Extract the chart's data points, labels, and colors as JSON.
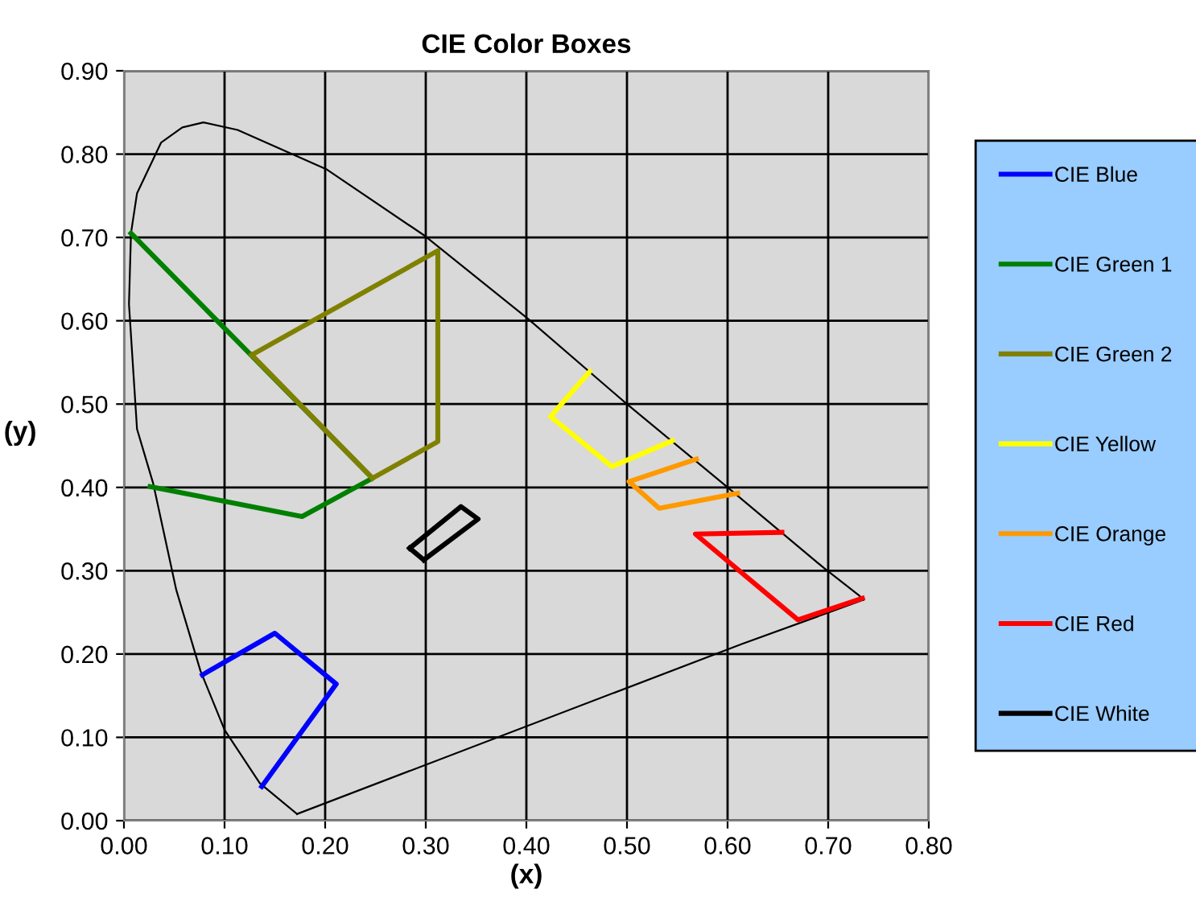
{
  "chart_data": {
    "type": "line",
    "title": "CIE Color Boxes",
    "xlabel": "(x)",
    "ylabel": "(y)",
    "xlim": [
      0,
      0.8
    ],
    "ylim": [
      0,
      0.9
    ],
    "xticks": [
      {
        "value": 0,
        "label": "0.00"
      },
      {
        "value": 0.1,
        "label": "0.10"
      },
      {
        "value": 0.2,
        "label": "0.20"
      },
      {
        "value": 0.3,
        "label": "0.30"
      },
      {
        "value": 0.4,
        "label": "0.40"
      },
      {
        "value": 0.5,
        "label": "0.50"
      },
      {
        "value": 0.6,
        "label": "0.60"
      },
      {
        "value": 0.7,
        "label": "0.70"
      },
      {
        "value": 0.8,
        "label": "0.80"
      }
    ],
    "yticks": [
      {
        "value": 0,
        "label": "0.00"
      },
      {
        "value": 0.1,
        "label": "0.10"
      },
      {
        "value": 0.2,
        "label": "0.20"
      },
      {
        "value": 0.3,
        "label": "0.30"
      },
      {
        "value": 0.4,
        "label": "0.40"
      },
      {
        "value": 0.5,
        "label": "0.50"
      },
      {
        "value": 0.6,
        "label": "0.60"
      },
      {
        "value": 0.7,
        "label": "0.70"
      },
      {
        "value": 0.8,
        "label": "0.80"
      },
      {
        "value": 0.9,
        "label": "0.90"
      }
    ],
    "grid": true,
    "legend": "right",
    "marker": "none",
    "line_style": "solid",
    "series": [
      {
        "color": "#000000",
        "x": [
          0.172,
          0.135,
          0.1,
          0.076,
          0.052,
          0.029,
          0.013,
          0.005,
          0.007,
          0.013,
          0.037,
          0.058,
          0.079,
          0.113,
          0.201,
          0.299,
          0.402,
          0.498,
          0.598,
          0.696,
          0.731,
          0.735
        ],
        "values": [
          0.008,
          0.045,
          0.109,
          0.18,
          0.277,
          0.405,
          0.47,
          0.62,
          0.705,
          0.753,
          0.814,
          0.832,
          0.838,
          0.829,
          0.782,
          0.702,
          0.602,
          0.502,
          0.402,
          0.303,
          0.27,
          0.265
        ]
      },
      {
        "color": "#000000",
        "x": [
          0.735,
          0.614,
          0.172
        ],
        "values": [
          0.265,
          0.212,
          0.008
        ]
      },
      {
        "name": "CIE Blue",
        "color": "#0000ff",
        "x": [
          0.078,
          0.15,
          0.211,
          0.137
        ],
        "values": [
          0.175,
          0.225,
          0.164,
          0.041
        ]
      },
      {
        "name": "CIE Green 1",
        "color": "#008000",
        "x": [
          0.007,
          0.247,
          0.177,
          0.026
        ],
        "values": [
          0.705,
          0.411,
          0.365,
          0.401
        ]
      },
      {
        "name": "CIE Green 2",
        "color": "#808000",
        "x": [
          0.247,
          0.312,
          0.312,
          0.127
        ],
        "values": [
          0.411,
          0.455,
          0.684,
          0.559
        ]
      },
      {
        "color": "#808000",
        "x": [
          0.127,
          0.247
        ],
        "values": [
          0.559,
          0.411
        ]
      },
      {
        "name": "CIE Yellow",
        "color": "#ffff00",
        "x": [
          0.463,
          0.424,
          0.485,
          0.545
        ],
        "values": [
          0.539,
          0.485,
          0.425,
          0.456
        ]
      },
      {
        "name": "CIE Orange",
        "color": "#ff9900",
        "x": [
          0.569,
          0.502,
          0.532,
          0.61
        ],
        "values": [
          0.434,
          0.407,
          0.375,
          0.393
        ]
      },
      {
        "name": "CIE Red",
        "color": "#ff0000",
        "x": [
          0.654,
          0.568,
          0.67,
          0.734
        ],
        "values": [
          0.346,
          0.344,
          0.241,
          0.267
        ]
      },
      {
        "name": "CIE White",
        "color": "#000000",
        "x": [
          0.284,
          0.335,
          0.352,
          0.298
        ],
        "values": [
          0.327,
          0.377,
          0.362,
          0.313
        ]
      },
      {
        "color": "#000000",
        "x": [
          0.298,
          0.284
        ],
        "values": [
          0.313,
          0.327
        ]
      }
    ]
  }
}
